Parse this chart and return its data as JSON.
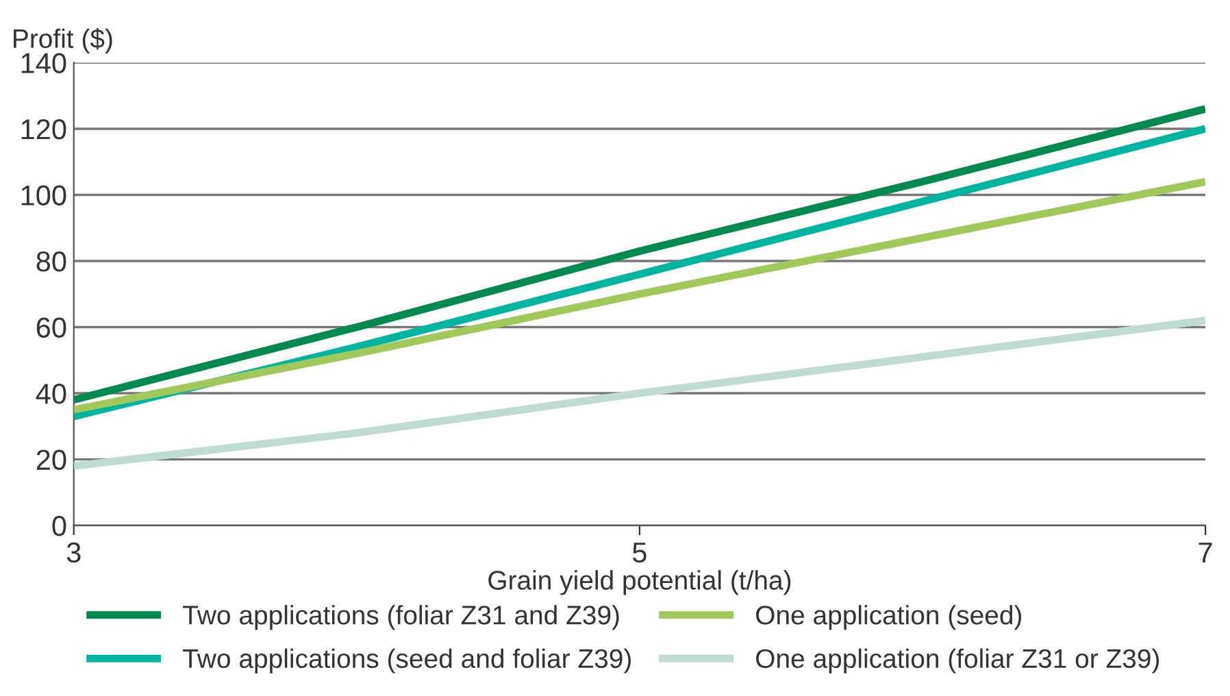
{
  "chart_data": {
    "type": "line",
    "ylabel": "Profit ($)",
    "xlabel": "Grain yield potential (t/ha)",
    "x": [
      3,
      4,
      5,
      6,
      7
    ],
    "series": [
      {
        "name": "Two applications (foliar Z31 and Z39)",
        "color": "#008a50",
        "values": [
          38,
          60,
          83,
          104,
          126
        ]
      },
      {
        "name": "Two applications (seed and foliar Z39)",
        "color": "#00b5a0",
        "values": [
          33,
          54,
          76,
          98,
          120
        ]
      },
      {
        "name": "One application (seed)",
        "color": "#a2c85c",
        "values": [
          35,
          52,
          70,
          87,
          104
        ]
      },
      {
        "name": "One application (foliar Z31 or Z39)",
        "color": "#c0dcd2",
        "values": [
          18,
          28,
          40,
          51,
          62
        ]
      }
    ],
    "xlim": [
      3,
      7
    ],
    "xticks": [
      3,
      5,
      7
    ],
    "ylim": [
      0,
      140
    ],
    "yticks": [
      0,
      20,
      40,
      60,
      80,
      100,
      120,
      140
    ],
    "grid": "y",
    "legend": "bottom",
    "marker": "none",
    "line_style": "solid"
  }
}
